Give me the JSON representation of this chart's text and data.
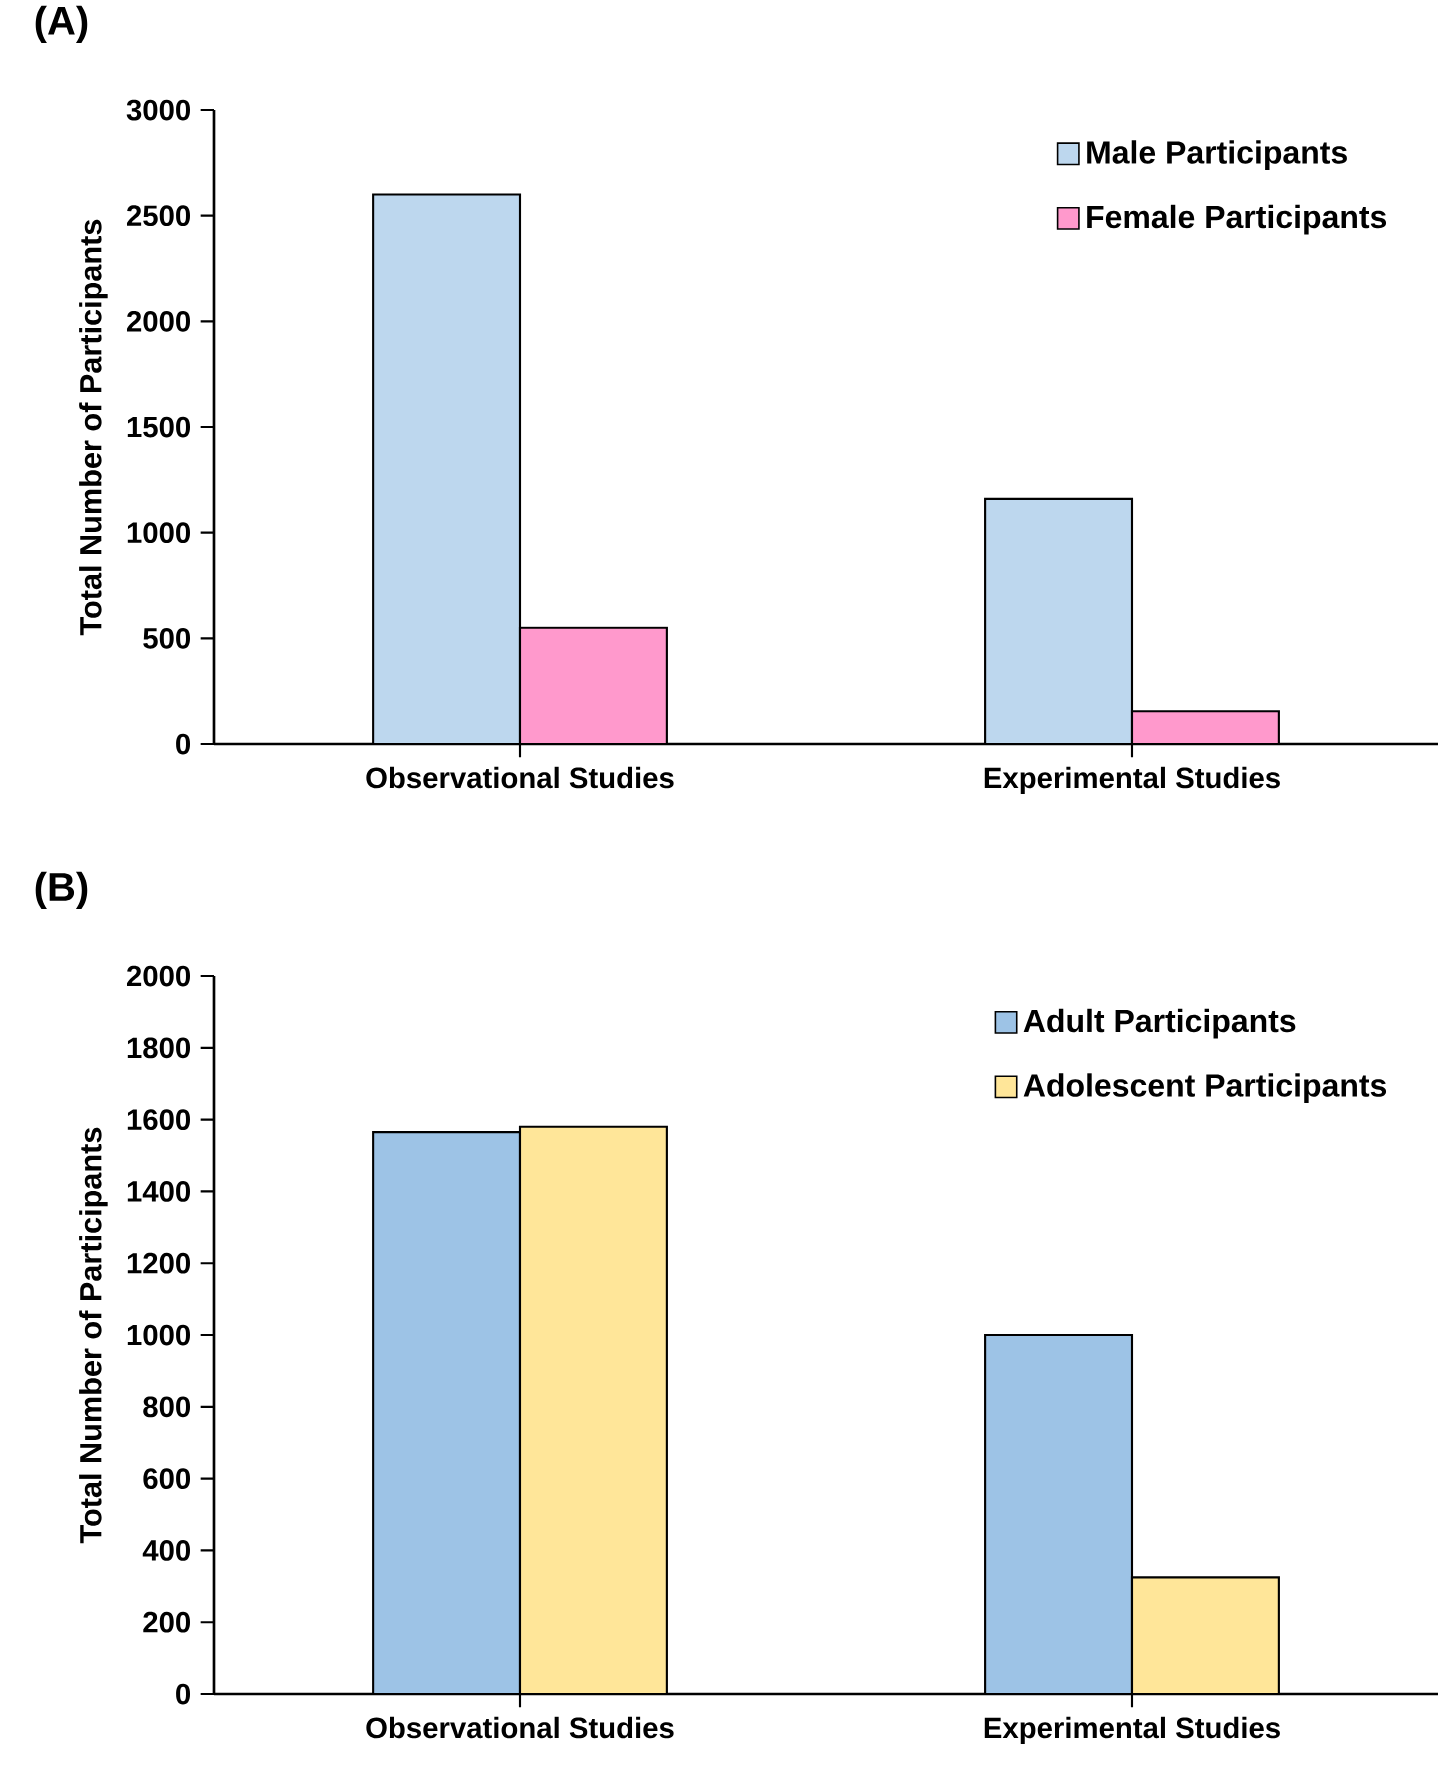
{
  "chart_data": [
    {
      "type": "bar",
      "title": "(A)",
      "ylabel": "Total Number of Participants",
      "categories": [
        "Observational Studies",
        "Experimental Studies"
      ],
      "series": [
        {
          "name": "Male Participants",
          "color": "#bdd7ee",
          "values": [
            2600,
            1160
          ]
        },
        {
          "name": "Female Participants",
          "color": "#ff99cc",
          "values": [
            550,
            155
          ]
        }
      ],
      "ylim": [
        0,
        3000
      ],
      "yticks": [
        0,
        500,
        1000,
        1500,
        2000,
        2500,
        3000
      ],
      "legend": "top right"
    },
    {
      "type": "bar",
      "title": "(B)",
      "ylabel": "Total Number of Participants",
      "categories": [
        "Observational Studies",
        "Experimental Studies"
      ],
      "series": [
        {
          "name": "Adult Participants",
          "color": "#9dc3e6",
          "values": [
            1565,
            1000
          ]
        },
        {
          "name": "Adolescent Participants",
          "color": "#ffe699",
          "values": [
            1580,
            325
          ]
        }
      ],
      "ylim": [
        0,
        2000
      ],
      "yticks": [
        0,
        200,
        400,
        600,
        800,
        1000,
        1200,
        1400,
        1600,
        1800,
        2000
      ],
      "legend": "top right"
    }
  ]
}
